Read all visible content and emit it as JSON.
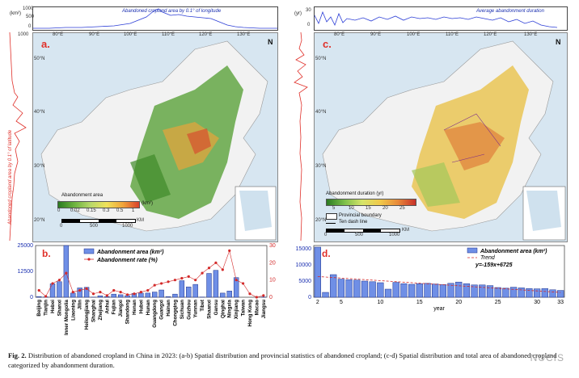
{
  "panel_a": {
    "label": "a.",
    "top_plot_title": "Abandoned cropland area by 0.1° of longitude",
    "top_unit": "(km²)",
    "top_ticks": [
      "1000",
      "500",
      "0"
    ],
    "left_plot_title": "Abandoned cropland area by 0.1° of latitude",
    "left_tick": "1000",
    "lon_labels": [
      "80°E",
      "90°E",
      "100°E",
      "110°E",
      "120°E",
      "130°E"
    ],
    "lat_labels": [
      "50°N",
      "40°N",
      "30°N",
      "20°N"
    ],
    "legend_title": "Abandonment area",
    "legend_unit": "(km²)",
    "legend_ticks": [
      "0",
      "0.02",
      "0.15",
      "0.3",
      "0.5",
      "1"
    ],
    "scale_ticks": [
      "0",
      "500",
      "1000"
    ],
    "scale_unit": "KM",
    "north": "N"
  },
  "panel_c": {
    "label": "c.",
    "top_plot_title": "Average abandonment duration",
    "top_unit": "(yr)",
    "top_ticks": [
      "30",
      "0"
    ],
    "lon_labels": [
      "80°E",
      "90°E",
      "100°E",
      "110°E",
      "120°E",
      "130°E"
    ],
    "lat_labels": [
      "50°N",
      "40°N",
      "30°N",
      "20°N"
    ],
    "legend_title": "Abandonment duration (yr)",
    "legend_ticks": [
      "5",
      "10",
      "15",
      "20",
      "25"
    ],
    "boundary_label": "Provincial boundary",
    "dash_label": "Ten dash line",
    "scale_ticks": [
      "0",
      "500",
      "1000"
    ],
    "scale_unit": "KM",
    "north": "N"
  },
  "chart_data": [
    {
      "type": "bar",
      "panel": "b.",
      "legend": [
        "Abandonment area (km²)",
        "Abandonment rate (%)"
      ],
      "y_left_ticks": [
        "25000",
        "12500",
        "0"
      ],
      "y_right_ticks": [
        "30",
        "20",
        "10",
        "0"
      ],
      "ylim_left": [
        0,
        25000
      ],
      "ylim_right": [
        0,
        30
      ],
      "categories": [
        "Beijing",
        "Tianjin",
        "Hebei",
        "Shanxi",
        "Inner Mongolia",
        "Liaoning",
        "Jilin",
        "Heilongjiang",
        "Shanghai",
        "Zhejiang",
        "Anhui",
        "Fujian",
        "Jiangxi",
        "Shandong",
        "Henan",
        "Hubei",
        "Hunan",
        "Guangdong",
        "Guangxi",
        "Hainan",
        "Chongqing",
        "Sichuan",
        "Guizhou",
        "Yunnan",
        "Tibet",
        "Shaanxi",
        "Gansu",
        "Qinghai",
        "Ningxia",
        "Xinjiang",
        "Taiwan",
        "Hong Kong",
        "Macao",
        "Jiangsu"
      ],
      "series": [
        {
          "name": "Abandonment area (km²)",
          "values": [
            300,
            150,
            6500,
            7500,
            27000,
            2000,
            4500,
            4800,
            50,
            700,
            300,
            1500,
            1200,
            800,
            1800,
            2000,
            2000,
            2500,
            3500,
            300,
            1500,
            8000,
            5000,
            6200,
            100,
            11500,
            13000,
            2000,
            3000,
            9500,
            0,
            0,
            0,
            100
          ]
        },
        {
          "name": "Abandonment rate (%)",
          "values": [
            4,
            0.5,
            8,
            10,
            14,
            3,
            4,
            5,
            2,
            3,
            1,
            4,
            3,
            1.5,
            2,
            3,
            4,
            7,
            8,
            9,
            10,
            11,
            12,
            10,
            14,
            17,
            20,
            16,
            27,
            10,
            8,
            2,
            0,
            1
          ]
        }
      ]
    },
    {
      "type": "bar",
      "panel": "d.",
      "legend": [
        "Abandonment area (km²)",
        "Trend"
      ],
      "equation": "y=-159x+6725",
      "xlabel": "year",
      "x_ticks": [
        "2",
        "5",
        "10",
        "15",
        "20",
        "25",
        "30",
        "33"
      ],
      "y_ticks": [
        "15000",
        "10000",
        "5000",
        "0"
      ],
      "ylim": [
        0,
        16000
      ],
      "x": [
        2,
        3,
        4,
        5,
        6,
        7,
        8,
        9,
        10,
        11,
        12,
        13,
        14,
        15,
        16,
        17,
        18,
        19,
        20,
        21,
        22,
        23,
        24,
        25,
        26,
        27,
        28,
        29,
        30,
        31,
        32,
        33
      ],
      "values": [
        15500,
        1500,
        7000,
        5600,
        5400,
        5300,
        5000,
        4800,
        4500,
        2500,
        4600,
        4200,
        4000,
        4200,
        4300,
        4100,
        3900,
        4300,
        4700,
        4200,
        3800,
        3800,
        3600,
        3000,
        2800,
        3100,
        2900,
        2700,
        2600,
        2700,
        2300,
        2100
      ]
    }
  ],
  "caption": {
    "fig": "Fig. 2.",
    "text": "Distribution of abandoned cropland in China in 2023: (a-b) Spatial distribution and provincial statistics of abandoned cropland; (c-d) Spatial distribution and total area of abandoned cropland categorized by abandonment duration."
  },
  "watermark": "NUCIS",
  "colors": {
    "bar": "#3b63d6",
    "line": "#d32a2a",
    "top_plot": "#2c3ed6",
    "left_plot": "#e0302a"
  }
}
